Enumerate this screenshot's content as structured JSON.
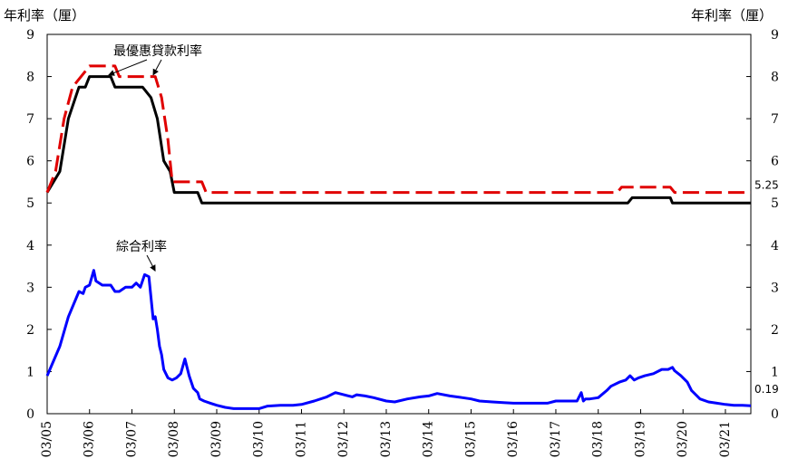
{
  "chart_data": {
    "type": "line",
    "y_unit_left": "年利率（厘）",
    "y_unit_right": "年利率（厘）",
    "ylim": [
      0,
      9
    ],
    "yticks": [
      "0",
      "1",
      "2",
      "3",
      "4",
      "5",
      "6",
      "7",
      "8",
      "9"
    ],
    "xlim": [
      2005.0,
      2021.6
    ],
    "xticks": [
      "03/05",
      "03/06",
      "03/07",
      "03/08",
      "03/09",
      "03/10",
      "03/11",
      "03/12",
      "03/13",
      "03/14",
      "03/15",
      "03/16",
      "03/17",
      "03/18",
      "03/19",
      "03/20",
      "03/21"
    ],
    "series": [
      {
        "name": "最優惠貸款利率",
        "color": "#000000",
        "dash": "solid",
        "x": [
          2005.0,
          2005.3,
          2005.5,
          2005.75,
          2005.9,
          2006.0,
          2006.1,
          2006.5,
          2006.6,
          2007.25,
          2007.45,
          2007.6,
          2007.75,
          2007.9,
          2008.0,
          2008.1,
          2008.55,
          2008.65,
          2009.0,
          2018.7,
          2018.8,
          2019.7,
          2019.75,
          2021.6
        ],
        "y": [
          5.25,
          5.75,
          7.0,
          7.75,
          7.75,
          8.0,
          8.0,
          8.0,
          7.75,
          7.75,
          7.5,
          7.0,
          6.0,
          5.75,
          5.25,
          5.25,
          5.25,
          5.0,
          5.0,
          5.0,
          5.125,
          5.125,
          5.0,
          5.0
        ]
      },
      {
        "name": "",
        "color": "#e00000",
        "dash": "dashed",
        "x": [
          2005.0,
          2005.2,
          2005.4,
          2005.6,
          2005.8,
          2006.0,
          2006.1,
          2006.6,
          2006.7,
          2007.55,
          2007.7,
          2007.85,
          2007.95,
          2008.05,
          2008.65,
          2008.75,
          2018.45,
          2018.55,
          2019.7,
          2019.8,
          2021.6
        ],
        "y": [
          5.25,
          5.75,
          7.0,
          7.75,
          8.0,
          8.25,
          8.25,
          8.25,
          8.0,
          8.0,
          7.5,
          6.5,
          5.5,
          5.5,
          5.5,
          5.25,
          5.25,
          5.375,
          5.375,
          5.25,
          5.25
        ]
      },
      {
        "name": "綜合利率",
        "color": "#0000ff",
        "dash": "solid",
        "x": [
          2005.0,
          2005.3,
          2005.5,
          2005.75,
          2005.85,
          2005.9,
          2006.0,
          2006.1,
          2006.15,
          2006.3,
          2006.5,
          2006.6,
          2006.7,
          2006.85,
          2007.0,
          2007.1,
          2007.2,
          2007.3,
          2007.4,
          2007.5,
          2007.55,
          2007.6,
          2007.65,
          2007.7,
          2007.75,
          2007.85,
          2007.95,
          2008.05,
          2008.15,
          2008.25,
          2008.35,
          2008.45,
          2008.55,
          2008.6,
          2008.7,
          2008.85,
          2009.0,
          2009.2,
          2009.4,
          2009.6,
          2010.0,
          2010.2,
          2010.5,
          2010.8,
          2011.0,
          2011.3,
          2011.6,
          2011.8,
          2012.0,
          2012.2,
          2012.3,
          2012.5,
          2012.7,
          2013.0,
          2013.2,
          2013.5,
          2013.8,
          2014.0,
          2014.2,
          2014.5,
          2014.8,
          2015.0,
          2015.2,
          2015.5,
          2015.8,
          2016.0,
          2016.5,
          2016.8,
          2017.0,
          2017.3,
          2017.5,
          2017.6,
          2017.65,
          2017.7,
          2017.8,
          2018.0,
          2018.2,
          2018.3,
          2018.5,
          2018.65,
          2018.75,
          2018.85,
          2018.95,
          2019.1,
          2019.3,
          2019.5,
          2019.65,
          2019.75,
          2019.8,
          2019.95,
          2020.1,
          2020.2,
          2020.4,
          2020.6,
          2020.8,
          2021.0,
          2021.2,
          2021.4,
          2021.6
        ],
        "y": [
          0.9,
          1.6,
          2.3,
          2.9,
          2.85,
          3.0,
          3.05,
          3.4,
          3.15,
          3.05,
          3.05,
          2.9,
          2.9,
          3.0,
          3.0,
          3.1,
          3.0,
          3.3,
          3.25,
          2.25,
          2.3,
          2.0,
          1.6,
          1.4,
          1.05,
          0.85,
          0.8,
          0.85,
          0.95,
          1.3,
          0.9,
          0.6,
          0.5,
          0.35,
          0.3,
          0.25,
          0.2,
          0.15,
          0.12,
          0.12,
          0.12,
          0.18,
          0.2,
          0.2,
          0.22,
          0.3,
          0.4,
          0.5,
          0.45,
          0.4,
          0.45,
          0.42,
          0.38,
          0.3,
          0.28,
          0.35,
          0.4,
          0.42,
          0.48,
          0.42,
          0.38,
          0.35,
          0.3,
          0.28,
          0.26,
          0.25,
          0.25,
          0.25,
          0.3,
          0.3,
          0.3,
          0.5,
          0.3,
          0.35,
          0.35,
          0.38,
          0.55,
          0.65,
          0.75,
          0.8,
          0.9,
          0.8,
          0.85,
          0.9,
          0.95,
          1.05,
          1.05,
          1.1,
          1.02,
          0.9,
          0.75,
          0.55,
          0.35,
          0.28,
          0.25,
          0.22,
          0.2,
          0.2,
          0.19
        ]
      }
    ],
    "annotations": [
      {
        "text": "最優惠貸款利率",
        "points_to": [
          [
            2006.45,
            7.95
          ],
          [
            2007.5,
            7.95
          ]
        ]
      },
      {
        "text": "綜合利率",
        "points_to": [
          [
            2007.55,
            3.3
          ]
        ]
      }
    ],
    "end_labels": [
      {
        "text": "5.25",
        "value": 5.25
      },
      {
        "text": "0.19",
        "value": 0.19
      }
    ]
  }
}
